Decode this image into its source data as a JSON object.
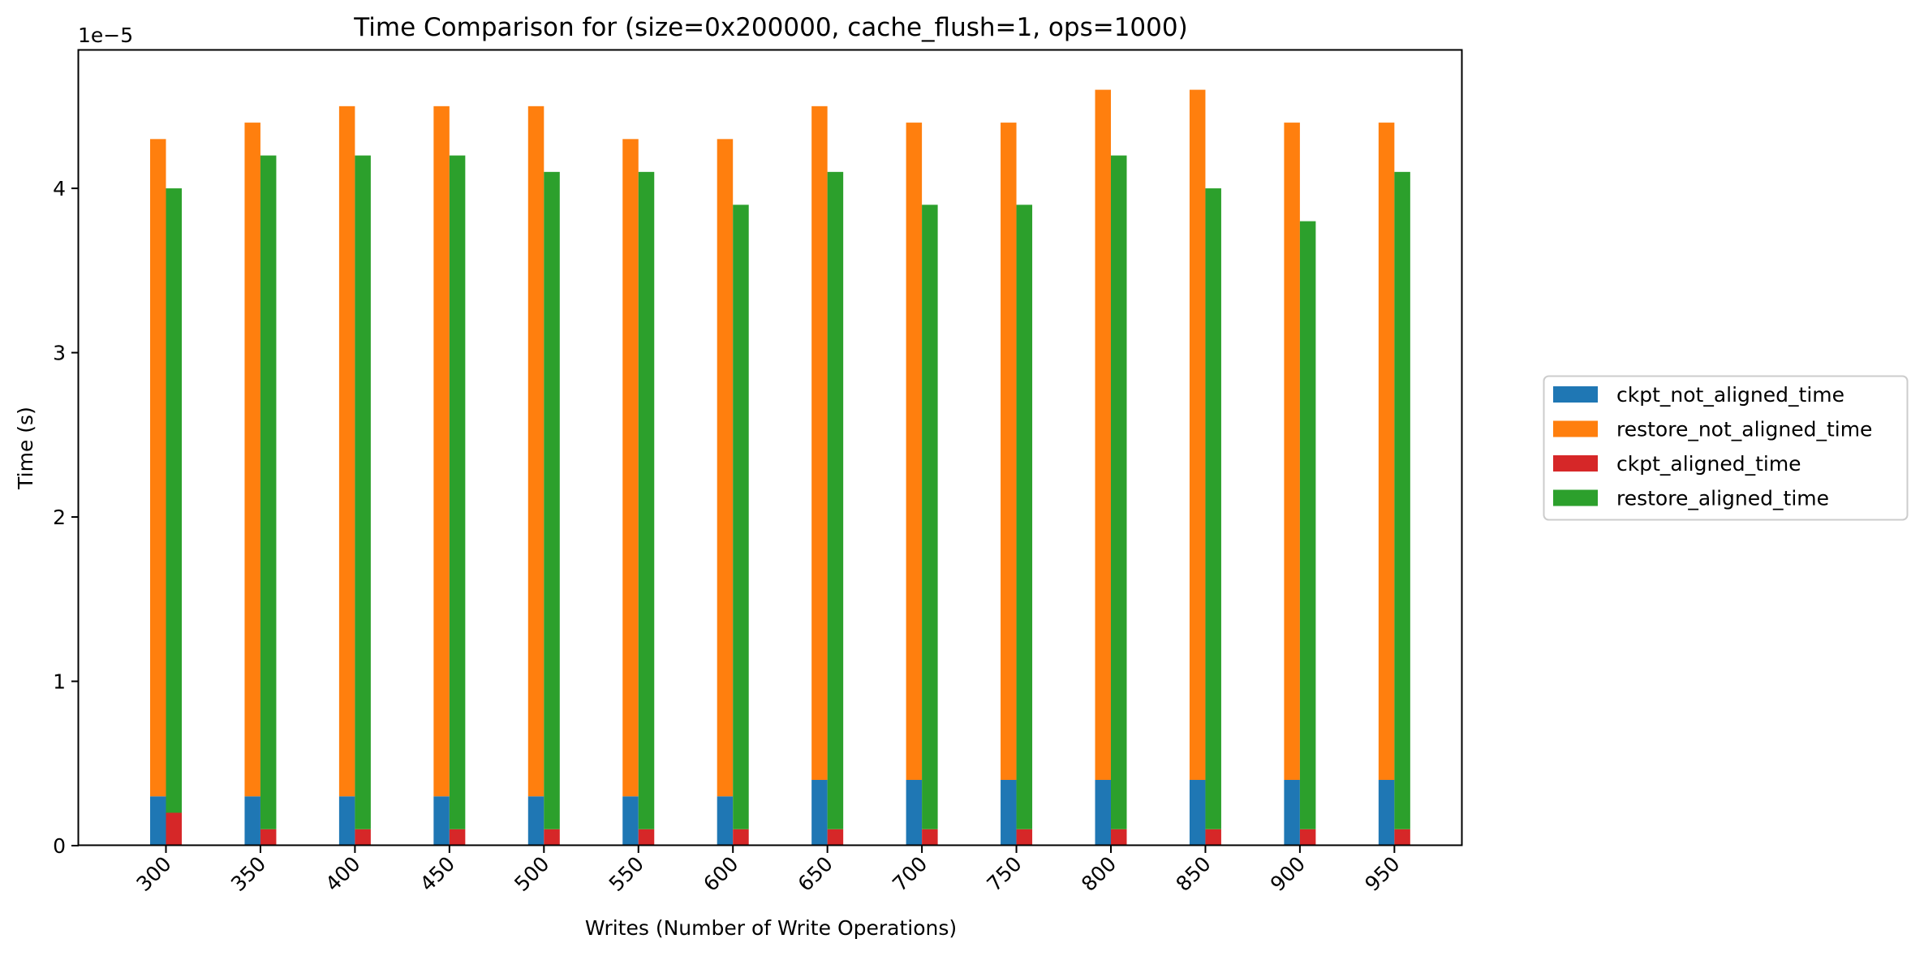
{
  "chart_data": {
    "type": "bar",
    "title": "Time Comparison for (size=0x200000, cache_flush=1, ops=1000)",
    "xlabel": "Writes (Number of Write Operations)",
    "ylabel": "Time (s)",
    "y_offset_label": "1e−5",
    "y_scale_factor": 1e-05,
    "ylim": [
      0,
      4.84
    ],
    "yticks": [
      0,
      1,
      2,
      3,
      4
    ],
    "categories": [
      "300",
      "350",
      "400",
      "450",
      "500",
      "550",
      "600",
      "650",
      "700",
      "750",
      "800",
      "850",
      "900",
      "950"
    ],
    "stacks": [
      {
        "name": "not_aligned",
        "series": [
          "ckpt_not_aligned_time",
          "restore_not_aligned_time"
        ]
      },
      {
        "name": "aligned",
        "series": [
          "ckpt_aligned_time",
          "restore_aligned_time"
        ]
      }
    ],
    "series": [
      {
        "name": "ckpt_not_aligned_time",
        "color": "#1f77b4",
        "values": [
          0.3,
          0.3,
          0.3,
          0.3,
          0.3,
          0.3,
          0.3,
          0.4,
          0.4,
          0.4,
          0.4,
          0.4,
          0.4,
          0.4
        ]
      },
      {
        "name": "restore_not_aligned_time",
        "color": "#ff7f0e",
        "values": [
          4.0,
          4.1,
          4.2,
          4.2,
          4.2,
          4.0,
          4.0,
          4.1,
          4.0,
          4.0,
          4.2,
          4.2,
          4.0,
          4.0
        ]
      },
      {
        "name": "ckpt_aligned_time",
        "color": "#d62728",
        "values": [
          0.2,
          0.1,
          0.1,
          0.1,
          0.1,
          0.1,
          0.1,
          0.1,
          0.1,
          0.1,
          0.1,
          0.1,
          0.1,
          0.1
        ]
      },
      {
        "name": "restore_aligned_time",
        "color": "#2ca02c",
        "values": [
          3.8,
          4.1,
          4.1,
          4.1,
          4.0,
          4.0,
          3.8,
          4.0,
          3.8,
          3.8,
          4.1,
          3.9,
          3.7,
          4.0
        ]
      }
    ],
    "legend_position": "right",
    "grid": false
  }
}
